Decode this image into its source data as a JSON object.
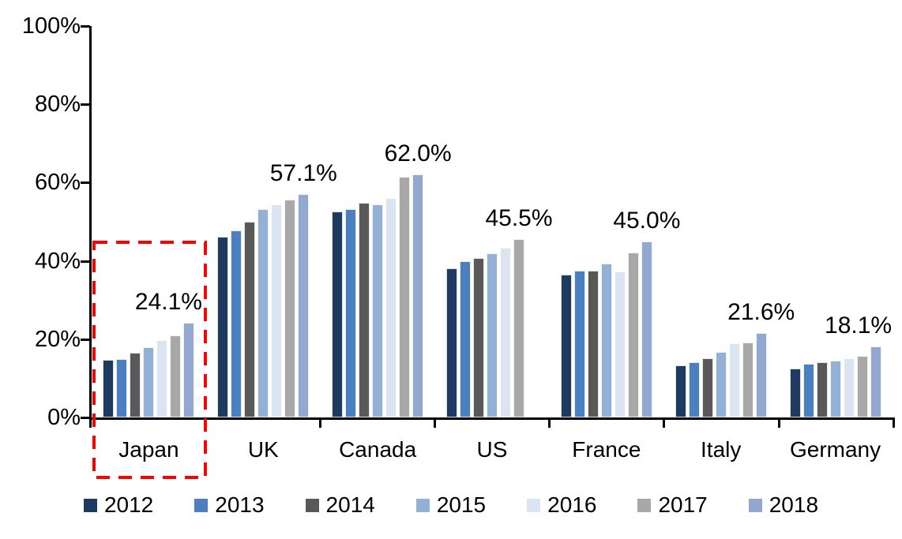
{
  "chart_data": {
    "type": "bar",
    "title": "",
    "xlabel": "",
    "ylabel": "",
    "categories": [
      "Japan",
      "UK",
      "Canada",
      "US",
      "France",
      "Italy",
      "Germany"
    ],
    "series": [
      {
        "name": "2012",
        "color": "#1e3a61",
        "values": [
          14.8,
          46.2,
          52.7,
          38.2,
          36.4,
          13.3,
          12.4
        ]
      },
      {
        "name": "2013",
        "color": "#4c7fbe",
        "values": [
          15.0,
          47.7,
          53.2,
          40.0,
          37.6,
          14.1,
          13.7
        ]
      },
      {
        "name": "2014",
        "color": "#595959",
        "values": [
          16.5,
          49.9,
          54.8,
          40.8,
          37.6,
          15.2,
          14.2
        ]
      },
      {
        "name": "2015",
        "color": "#93b1d7",
        "values": [
          17.9,
          53.2,
          54.5,
          41.9,
          39.3,
          16.7,
          14.5
        ]
      },
      {
        "name": "2016",
        "color": "#dbe5f1",
        "values": [
          19.8,
          54.5,
          56.0,
          43.3,
          37.3,
          18.9,
          15.2
        ]
      },
      {
        "name": "2017",
        "color": "#a8a8a8",
        "values": [
          21.0,
          55.6,
          61.5,
          45.5,
          42.2,
          19.1,
          15.7
        ]
      },
      {
        "name": "2018",
        "color": "#93a8d1",
        "values": [
          24.1,
          57.1,
          62.0,
          null,
          45.0,
          21.6,
          18.1
        ]
      }
    ],
    "value_labels": [
      {
        "category": "Japan",
        "text": "24.1%"
      },
      {
        "category": "UK",
        "text": "57.1%"
      },
      {
        "category": "Canada",
        "text": "62.0%"
      },
      {
        "category": "US",
        "text": "45.5%"
      },
      {
        "category": "France",
        "text": "45.0%"
      },
      {
        "category": "Italy",
        "text": "21.6%"
      },
      {
        "category": "Germany",
        "text": "18.1%"
      }
    ],
    "ylim": [
      0,
      100
    ],
    "yticks": [
      "0%",
      "20%",
      "40%",
      "60%",
      "80%",
      "100%"
    ],
    "grid": false,
    "legend_position": "bottom",
    "legend_entries": [
      "2012",
      "2013",
      "2014",
      "2015",
      "2016",
      "2017",
      "2018"
    ],
    "highlight": {
      "category": "Japan",
      "style": "dashed-box",
      "color": "#ff0000"
    }
  }
}
